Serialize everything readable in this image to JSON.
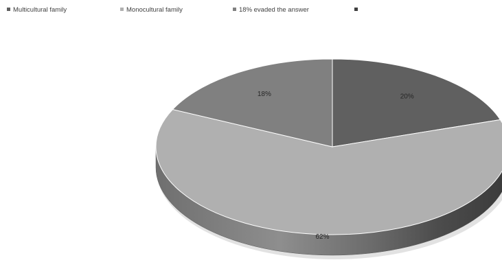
{
  "chart_data": {
    "type": "pie",
    "style": "3d",
    "title": "",
    "legend_position": "top",
    "categories": [
      "Multicultural family",
      "Monocultural family",
      "18% evaded the answer",
      ""
    ],
    "values": [
      20,
      62,
      18,
      0
    ],
    "labels": [
      "20%",
      "62%",
      "18%",
      ""
    ],
    "colors": [
      "#606060",
      "#b0b0b0",
      "#808080",
      "#404040"
    ]
  }
}
